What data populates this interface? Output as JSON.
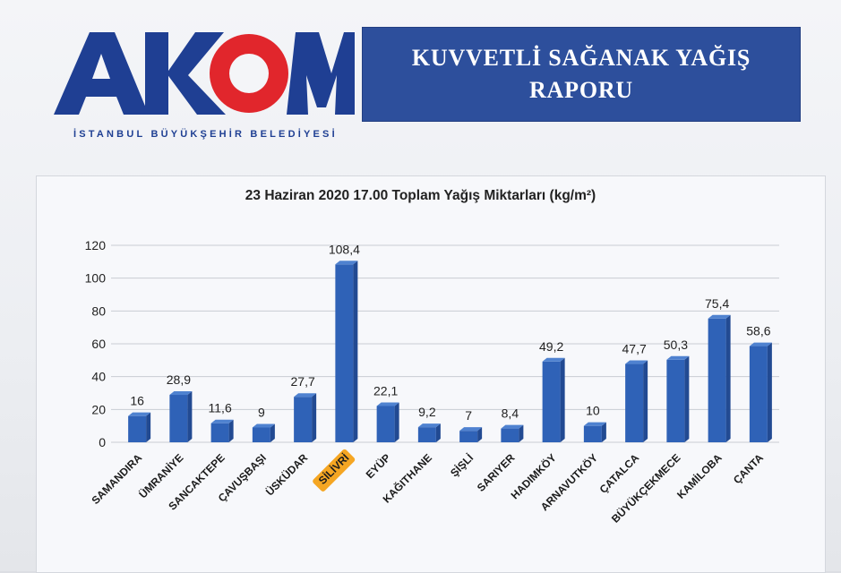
{
  "logo": {
    "wordmark": "AKOM",
    "subtitle": "İSTANBUL BÜYÜKŞEHİR BELEDİYESİ"
  },
  "header": {
    "title_line1": "KUVVETLİ SAĞANAK YAĞIŞ",
    "title_line2": "RAPORU"
  },
  "colors": {
    "bar": "#2f62b7",
    "banner": "#2d4f9c",
    "logo_blue": "#1f3f93",
    "logo_red": "#e1262c",
    "highlight": "#f5a623"
  },
  "chart_data": {
    "type": "bar",
    "title": "23 Haziran 2020 17.00 Toplam Yağış Miktarları (kg/m²)",
    "xlabel": "",
    "ylabel": "",
    "ylim": [
      0,
      120
    ],
    "yticks": [
      0,
      20,
      40,
      60,
      80,
      100,
      120
    ],
    "grid": true,
    "highlighted_category": "SİLİVRİ",
    "categories": [
      "SAMANDIRA",
      "ÜMRANİYE",
      "SANCAKTEPE",
      "ÇAVUŞBAŞI",
      "ÜSKÜDAR",
      "SİLİVRİ",
      "EYÜP",
      "KAĞITHANE",
      "ŞİŞLİ",
      "SARIYER",
      "HADIMKÖY",
      "ARNAVUTKÖY",
      "ÇATALCA",
      "BÜYÜKÇEKMECE",
      "KAMİLOBA",
      "ÇANTA"
    ],
    "values": [
      16,
      28.9,
      11.6,
      9,
      27.7,
      108.4,
      22.1,
      9.2,
      7,
      8.4,
      49.2,
      10,
      47.7,
      50.3,
      75.4,
      58.6
    ],
    "value_labels": [
      "16",
      "28,9",
      "11,6",
      "9",
      "27,7",
      "108,4",
      "22,1",
      "9,2",
      "7",
      "8,4",
      "49,2",
      "10",
      "47,7",
      "50,3",
      "75,4",
      "58,6"
    ]
  }
}
